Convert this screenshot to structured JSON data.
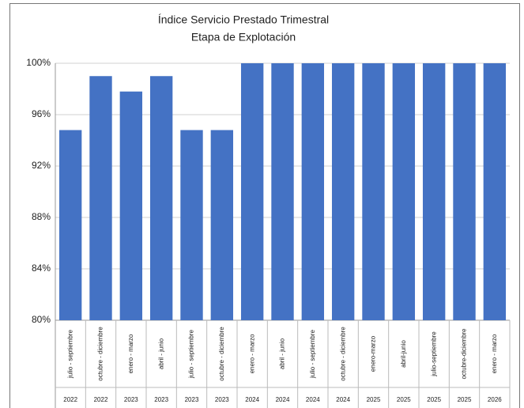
{
  "chart_data": {
    "type": "bar",
    "title": "Índice Servicio Prestado Trimestral",
    "subtitle": "Etapa de Explotación",
    "categories": [
      "julio - septiembre",
      "octubre - diciembre",
      "enero - marzo",
      "abril - junio",
      "julio - septiembre",
      "octubre - diciembre",
      "enero - marzo",
      "abril - junio",
      "julio - septiembre",
      "octubre - diciembre",
      "enero-marzo",
      "abril-junio",
      "julio-septiembre",
      "octubre-diciembre",
      "enero - marzo"
    ],
    "category_years": [
      "2022",
      "2022",
      "2023",
      "2023",
      "2023",
      "2023",
      "2024",
      "2024",
      "2024",
      "2024",
      "2025",
      "2025",
      "2025",
      "2025",
      "2026"
    ],
    "values": [
      94.8,
      99.0,
      97.8,
      99.0,
      94.8,
      94.8,
      100,
      100,
      100,
      100,
      100,
      100,
      100,
      100,
      100
    ],
    "color": "#4472c4",
    "ylim": [
      80,
      100
    ],
    "yticks": [
      {
        "value": 80,
        "label": "80%"
      },
      {
        "value": 84,
        "label": "84%"
      },
      {
        "value": 88,
        "label": "88%"
      },
      {
        "value": 92,
        "label": "92%"
      },
      {
        "value": 96,
        "label": "96%"
      },
      {
        "value": 100,
        "label": "100%"
      }
    ],
    "grid": true
  }
}
